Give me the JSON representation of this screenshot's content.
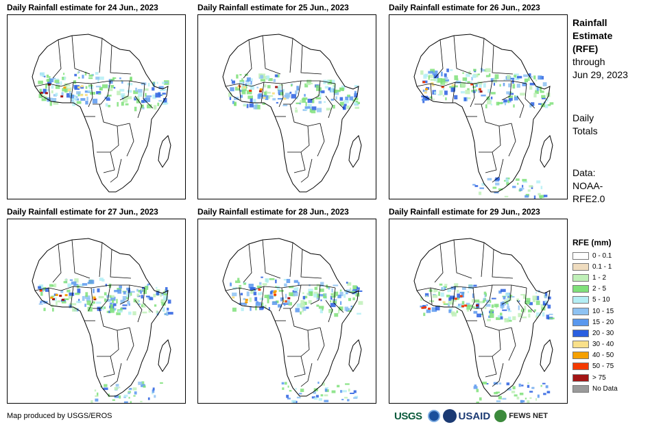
{
  "panels": [
    {
      "title": "Daily Rainfall estimate for 24 Jun., 2023",
      "map_name": "rfe-map-24-jun"
    },
    {
      "title": "Daily Rainfall estimate for 25 Jun., 2023",
      "map_name": "rfe-map-25-jun"
    },
    {
      "title": "Daily Rainfall estimate for 26 Jun., 2023",
      "map_name": "rfe-map-26-jun"
    },
    {
      "title": "Daily Rainfall estimate for 27 Jun., 2023",
      "map_name": "rfe-map-27-jun"
    },
    {
      "title": "Daily Rainfall estimate for 28 Jun., 2023",
      "map_name": "rfe-map-28-jun"
    },
    {
      "title": "Daily Rainfall estimate for 29 Jun., 2023",
      "map_name": "rfe-map-29-jun"
    }
  ],
  "side": {
    "title_line1": "Rainfall",
    "title_line2": "Estimate",
    "title_line3": "(RFE)",
    "through": "through",
    "date": "Jun 29, 2023",
    "totals_line1": "Daily",
    "totals_line2": "Totals",
    "data_line1": "Data:",
    "data_line2": "NOAA-",
    "data_line3": "RFE2.0"
  },
  "legend": {
    "title": "RFE (mm)",
    "items": [
      {
        "label": "0 - 0.1",
        "color": "#ffffff"
      },
      {
        "label": "0.1 - 1",
        "color": "#efdcbf"
      },
      {
        "label": "1 - 2",
        "color": "#bff0b8"
      },
      {
        "label": "2 - 5",
        "color": "#7fe07a"
      },
      {
        "label": "5 - 10",
        "color": "#b4eef4"
      },
      {
        "label": "10 - 15",
        "color": "#8ec2f2"
      },
      {
        "label": "15 - 20",
        "color": "#5a98ee"
      },
      {
        "label": "20 - 30",
        "color": "#2a5fe0"
      },
      {
        "label": "30 - 40",
        "color": "#f9e08a"
      },
      {
        "label": "40 - 50",
        "color": "#f5a000"
      },
      {
        "label": "50 - 75",
        "color": "#f43a00"
      },
      {
        "label": "> 75",
        "color": "#a31515"
      },
      {
        "label": "No Data",
        "color": "#9a9a9a"
      }
    ]
  },
  "footer": {
    "credit": "Map produced by USGS/EROS"
  },
  "logos": {
    "usgs": "USGS",
    "usaid": "USAID",
    "fews": "FEWS NET"
  }
}
